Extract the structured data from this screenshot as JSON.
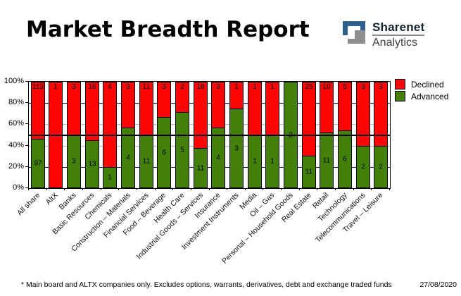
{
  "header": {
    "title": "Market Breadth Report",
    "logo": {
      "name": "Sharenet",
      "subtitle": "Analytics",
      "blue": "#2e608e",
      "gray": "#8e8e8e"
    }
  },
  "chart_data": {
    "type": "bar",
    "stacked": true,
    "unit": "percent_of_sector_total",
    "title": "",
    "categories": [
      "All share",
      "AltX",
      "Banks",
      "Basic Resources",
      "Chemicals",
      "Construction – Materials",
      "Financial Services",
      "Food – Beverage",
      "Health Care",
      "Industrial Goods – Services",
      "Insurance",
      "Investment Instruments",
      "Media",
      "Oil – Gas",
      "Personal – Household Goods",
      "Real Estate",
      "Retail",
      "Technology",
      "Telecommunications",
      "Travel – Leisure"
    ],
    "series": [
      {
        "name": "Advanced",
        "color": "#42800a",
        "values": [
          97,
          0,
          3,
          13,
          1,
          4,
          11,
          6,
          5,
          11,
          4,
          3,
          1,
          1,
          2,
          11,
          11,
          6,
          2,
          2
        ]
      },
      {
        "name": "Declined",
        "color": "#fb0505",
        "values": [
          113,
          1,
          3,
          16,
          4,
          3,
          11,
          3,
          2,
          18,
          3,
          1,
          1,
          1,
          0,
          25,
          10,
          5,
          3,
          3
        ]
      }
    ],
    "ylabel_ticks": [
      "0%",
      "20%",
      "40%",
      "60%",
      "80%",
      "100%"
    ],
    "ylim": [
      0,
      100
    ],
    "grid_major_pcts": [
      20,
      80
    ],
    "grid_minor_pcts": [
      40,
      60
    ],
    "grid_major_color": "#000080",
    "grid_minor_color": "#b8b8b8",
    "reference_line_pct": 50,
    "legend_position": "right-top",
    "legend": [
      {
        "label": "Declined",
        "color": "#fb0505"
      },
      {
        "label": "Advanced",
        "color": "#42800a"
      }
    ]
  },
  "footer": {
    "note": "* Main board and ALTX companies only. Excludes options, warrants, derivatives, debt and exchange traded funds",
    "date": "27/08/2020"
  }
}
